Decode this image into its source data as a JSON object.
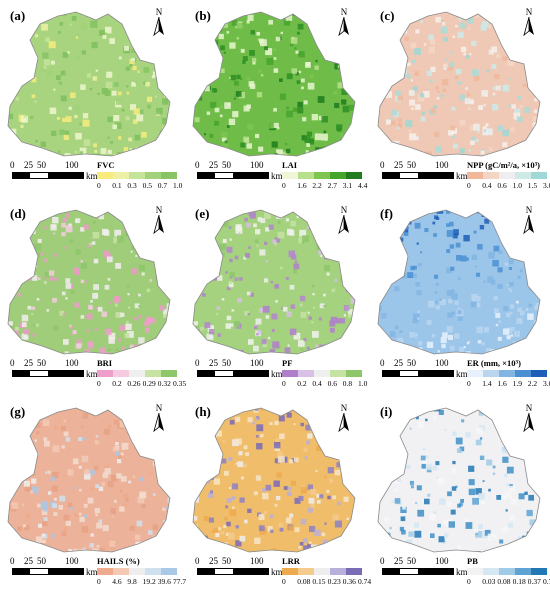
{
  "north_label": "N",
  "scale": {
    "ticks": [
      "0",
      "25",
      "50",
      "100"
    ],
    "unit": "km"
  },
  "panels": [
    {
      "label": "(a)",
      "title": "FVC",
      "ticks": [
        "0",
        "0.1",
        "0.3",
        "0.5",
        "0.7",
        "1.0"
      ],
      "colors": [
        "#f7eb7c",
        "#eef1a4",
        "#c6e39a",
        "#a1d178",
        "#86c464"
      ],
      "base": "#a8d47f",
      "accent": "#7fbf5d",
      "sparse": "#eef7cf"
    },
    {
      "label": "(b)",
      "title": "LAI",
      "ticks": [
        "0",
        "1.6",
        "2.2",
        "2.7",
        "3.1",
        "4.4"
      ],
      "colors": [
        "#edf7d6",
        "#b8e08c",
        "#7ec651",
        "#46a52d",
        "#1f7d1d"
      ],
      "base": "#6fbd48",
      "accent": "#2e8f22",
      "sparse": "#e8f5d0"
    },
    {
      "label": "(c)",
      "title": "NPP (gC/m²/a, ×10³)",
      "ticks": [
        "0",
        "0.4",
        "0.6",
        "1.0",
        "1.5",
        "3.0"
      ],
      "colors": [
        "#f0b79a",
        "#f5d6c4",
        "#eeeeee",
        "#cdeae7",
        "#9fd8d4"
      ],
      "base": "#efc9b5",
      "accent": "#a9dcd8",
      "sparse": "#f6f0ec"
    },
    {
      "label": "(d)",
      "title": "BRI",
      "ticks": [
        "0",
        "0.2",
        "0.26",
        "0.29",
        "0.32",
        "0.35"
      ],
      "colors": [
        "#ef9dcb",
        "#f6cbe2",
        "#efefef",
        "#c7e3a4",
        "#8ec66a"
      ],
      "base": "#9fcd79",
      "accent": "#ec9ac8",
      "sparse": "#f4eef2"
    },
    {
      "label": "(e)",
      "title": "PF",
      "ticks": [
        "0",
        "0.2",
        "0.4",
        "0.6",
        "0.8",
        "1.0"
      ],
      "colors": [
        "#b07fcb",
        "#d9c0e6",
        "#efefef",
        "#c7e3a4",
        "#8ec66a"
      ],
      "base": "#a4d27e",
      "accent": "#b486ce",
      "sparse": "#f1f4ec"
    },
    {
      "label": "(f)",
      "title": "ER (mm, ×10³)",
      "ticks": [
        "0",
        "1.4",
        "1.6",
        "1.9",
        "2.2",
        "3.0"
      ],
      "colors": [
        "#e7f1fb",
        "#b9d5f0",
        "#82b5e3",
        "#4b8fd3",
        "#1d5fb8"
      ],
      "base": "#9cc5ea",
      "accent": "#2f6fc4",
      "sparse": "#dcebf8"
    },
    {
      "label": "(g)",
      "title": "HAILS (%)",
      "ticks": [
        "0",
        "4.6",
        "9.8",
        "19.2",
        "39.6",
        "77.7"
      ],
      "colors": [
        "#eeaa8c",
        "#f3c9b4",
        "#eeeeee",
        "#cfe0ef",
        "#a9c7e6"
      ],
      "base": "#ecb39a",
      "accent": "#e6a184",
      "sparse": "#f3dccf"
    },
    {
      "label": "(h)",
      "title": "LRR",
      "ticks": [
        "0",
        "0.08",
        "0.15",
        "0.23",
        "0.36",
        "0.74"
      ],
      "colors": [
        "#eeaa4e",
        "#f4cb8c",
        "#eeeeee",
        "#b8b0da",
        "#7a6bb7"
      ],
      "base": "#f0bd6a",
      "accent": "#8d80c2",
      "sparse": "#f7e6c8"
    },
    {
      "label": "(i)",
      "title": "PB",
      "ticks": [
        "0",
        "0.03",
        "0.08",
        "0.18",
        "0.37",
        "0.76"
      ],
      "colors": [
        "#f2f2f2",
        "#d5e7f3",
        "#9fcbe6",
        "#5ea3d2",
        "#2278b5"
      ],
      "base": "#f1f1f3",
      "accent": "#3f8fc6",
      "sparse": "#f7f7f8"
    }
  ]
}
